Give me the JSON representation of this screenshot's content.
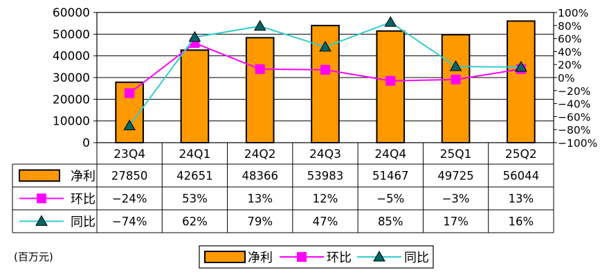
{
  "chart_data": {
    "type": "bar",
    "categories": [
      "23Q4",
      "24Q1",
      "24Q2",
      "24Q3",
      "24Q4",
      "25Q1",
      "25Q2"
    ],
    "series": [
      {
        "name": "净利",
        "kind": "bar",
        "axis": "left",
        "values": [
          27850,
          42651,
          48366,
          53983,
          51467,
          49725,
          56044
        ],
        "labels": [
          "27850",
          "42651",
          "48366",
          "53983",
          "51467",
          "49725",
          "56044"
        ],
        "color": "#FF9900",
        "marker": ""
      },
      {
        "name": "环比",
        "kind": "line",
        "axis": "right",
        "values": [
          -24,
          53,
          13,
          12,
          -5,
          -3,
          13
        ],
        "labels": [
          "−24%",
          "53%",
          "13%",
          "12%",
          "−5%",
          "−3%",
          "13%"
        ],
        "color": "#FF00FF",
        "marker": "square"
      },
      {
        "name": "同比",
        "kind": "line",
        "axis": "right",
        "values": [
          -74,
          62,
          79,
          47,
          85,
          17,
          16
        ],
        "labels": [
          "−74%",
          "62%",
          "79%",
          "47%",
          "85%",
          "17%",
          "16%"
        ],
        "color": "#33CCCC",
        "marker": "triangle"
      }
    ],
    "y_left": {
      "ylim": [
        0,
        60000
      ],
      "ticks": [
        "0",
        "10000",
        "20000",
        "30000",
        "40000",
        "50000",
        "60000"
      ]
    },
    "y_right": {
      "ylim": [
        -100,
        100
      ],
      "ticks": [
        "−100%",
        "−80%",
        "−60%",
        "−40%",
        "−20%",
        "0%",
        "20%",
        "40%",
        "60%",
        "80%",
        "100%"
      ]
    },
    "grid": true,
    "data_table": true,
    "legend_position": "bottom-center",
    "unit_note": "(百万元)"
  }
}
